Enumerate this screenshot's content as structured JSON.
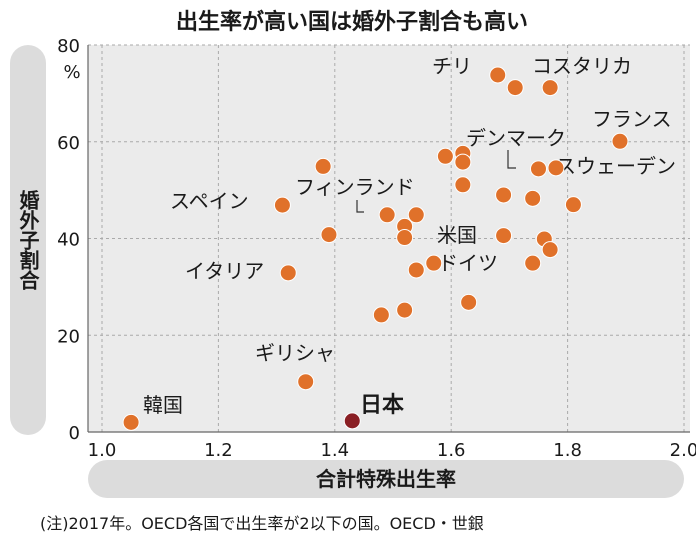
{
  "chart_data": {
    "type": "scatter",
    "title": "出生率が高い国は婚外子割合も高い",
    "xlabel": "合計特殊出生率",
    "ylabel": "婚外子割合",
    "y_unit": "%",
    "xlim": [
      1.0,
      2.0
    ],
    "ylim": [
      0,
      80
    ],
    "x_ticks": [
      "1.0",
      "1.2",
      "1.4",
      "1.6",
      "1.8",
      "2.0"
    ],
    "y_ticks": [
      "0",
      "20",
      "40",
      "60",
      "80"
    ],
    "grid": true,
    "colors": {
      "default": "#e0712a",
      "highlight": "#8a1f24",
      "plot_bg": "#ebebeb",
      "pill_bg": "#dcdcdc"
    },
    "points": [
      {
        "x": 1.68,
        "y": 73.8,
        "label": "チリ"
      },
      {
        "x": 1.71,
        "y": 71.2
      },
      {
        "x": 1.77,
        "y": 71.2,
        "label": "コスタリカ"
      },
      {
        "x": 1.89,
        "y": 60.1,
        "label": "フランス"
      },
      {
        "x": 1.59,
        "y": 57.0
      },
      {
        "x": 1.62,
        "y": 57.6
      },
      {
        "x": 1.62,
        "y": 55.8
      },
      {
        "x": 1.75,
        "y": 54.4,
        "label": "デンマーク"
      },
      {
        "x": 1.78,
        "y": 54.6,
        "label": "スウェーデン"
      },
      {
        "x": 1.38,
        "y": 54.9
      },
      {
        "x": 1.62,
        "y": 51.1
      },
      {
        "x": 1.69,
        "y": 49.0
      },
      {
        "x": 1.74,
        "y": 48.3
      },
      {
        "x": 1.81,
        "y": 47.0
      },
      {
        "x": 1.31,
        "y": 46.9,
        "label": "スペイン"
      },
      {
        "x": 1.49,
        "y": 44.9,
        "label": "フィンランド"
      },
      {
        "x": 1.54,
        "y": 44.9
      },
      {
        "x": 1.52,
        "y": 42.5
      },
      {
        "x": 1.52,
        "y": 40.2
      },
      {
        "x": 1.39,
        "y": 40.8
      },
      {
        "x": 1.69,
        "y": 40.6,
        "label": "米国"
      },
      {
        "x": 1.76,
        "y": 39.9
      },
      {
        "x": 1.77,
        "y": 37.7
      },
      {
        "x": 1.74,
        "y": 34.9
      },
      {
        "x": 1.57,
        "y": 34.9,
        "label": "ドイツ"
      },
      {
        "x": 1.54,
        "y": 33.5
      },
      {
        "x": 1.32,
        "y": 32.9,
        "label": "イタリア"
      },
      {
        "x": 1.63,
        "y": 26.8
      },
      {
        "x": 1.52,
        "y": 25.2
      },
      {
        "x": 1.48,
        "y": 24.2
      },
      {
        "x": 1.35,
        "y": 10.4,
        "label": "ギリシャ"
      },
      {
        "x": 1.05,
        "y": 2.0,
        "label": "韓国"
      },
      {
        "x": 1.43,
        "y": 2.3,
        "label": "日本",
        "highlight": true
      }
    ]
  },
  "note": "(注)2017年。OECD各国で出生率が2以下の国。OECD・世銀"
}
